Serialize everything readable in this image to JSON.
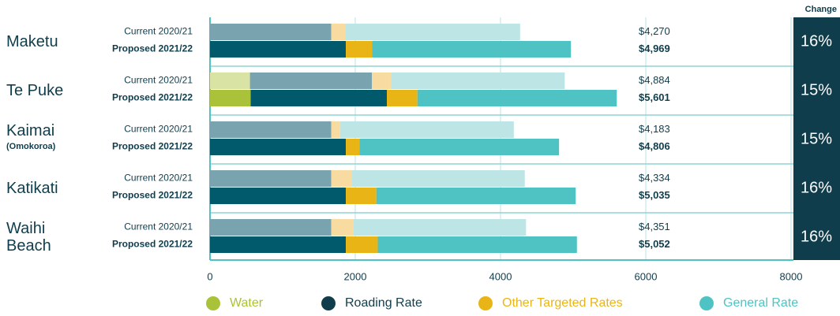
{
  "chart_data": {
    "type": "bar",
    "orientation": "horizontal",
    "stacked": true,
    "categories": [
      "Maketu",
      "Te Puke",
      "Kaimai",
      "Katikati",
      "Waihi Beach"
    ],
    "category_notes": [
      null,
      null,
      "(Omokoroa)",
      null,
      null
    ],
    "periods": [
      "Current 2020/21",
      "Proposed 2021/22"
    ],
    "series": [
      {
        "name": "Water",
        "color": "#a9c23a",
        "current_color": "#d9e3a3",
        "text_color": "#a9c23a",
        "values": [
          [
            0,
            0
          ],
          [
            550,
            560
          ],
          [
            0,
            0
          ],
          [
            0,
            0
          ],
          [
            0,
            0
          ]
        ]
      },
      {
        "name": "Roading Rate",
        "color": "#005a6b",
        "current_color": "#7aa3b0",
        "text_color": "#0f3d4c",
        "legend_color": "#0f3d4c",
        "values": [
          [
            1670,
            1870
          ],
          [
            1680,
            1875
          ],
          [
            1670,
            1870
          ],
          [
            1670,
            1870
          ],
          [
            1670,
            1870
          ]
        ]
      },
      {
        "name": "Other Targeted Rates",
        "color": "#e9b516",
        "current_color": "#f7dba0",
        "text_color": "#e9b516",
        "values": [
          [
            200,
            360
          ],
          [
            260,
            420
          ],
          [
            120,
            190
          ],
          [
            280,
            420
          ],
          [
            300,
            440
          ]
        ]
      },
      {
        "name": "General Rate",
        "color": "#4fc3c3",
        "current_color": "#bde5e5",
        "text_color": "#4fc3c3",
        "values": [
          [
            2400,
            2739
          ],
          [
            2394,
            2746
          ],
          [
            2393,
            2746
          ],
          [
            2384,
            2745
          ],
          [
            2381,
            2742
          ]
        ]
      }
    ],
    "total_labels": [
      [
        "$4,270",
        "$4,969"
      ],
      [
        "$4,884",
        "$5,601"
      ],
      [
        "$4,183",
        "$4,806"
      ],
      [
        "$4,334",
        "$5,035"
      ],
      [
        "$4,351",
        "$5,052"
      ]
    ],
    "change_title": "Change",
    "change_labels": [
      "16%",
      "15%",
      "15%",
      "16%",
      "16%"
    ],
    "xlim": [
      0,
      8000
    ],
    "xticks": [
      0,
      2000,
      4000,
      6000,
      8000
    ],
    "grid": true
  }
}
